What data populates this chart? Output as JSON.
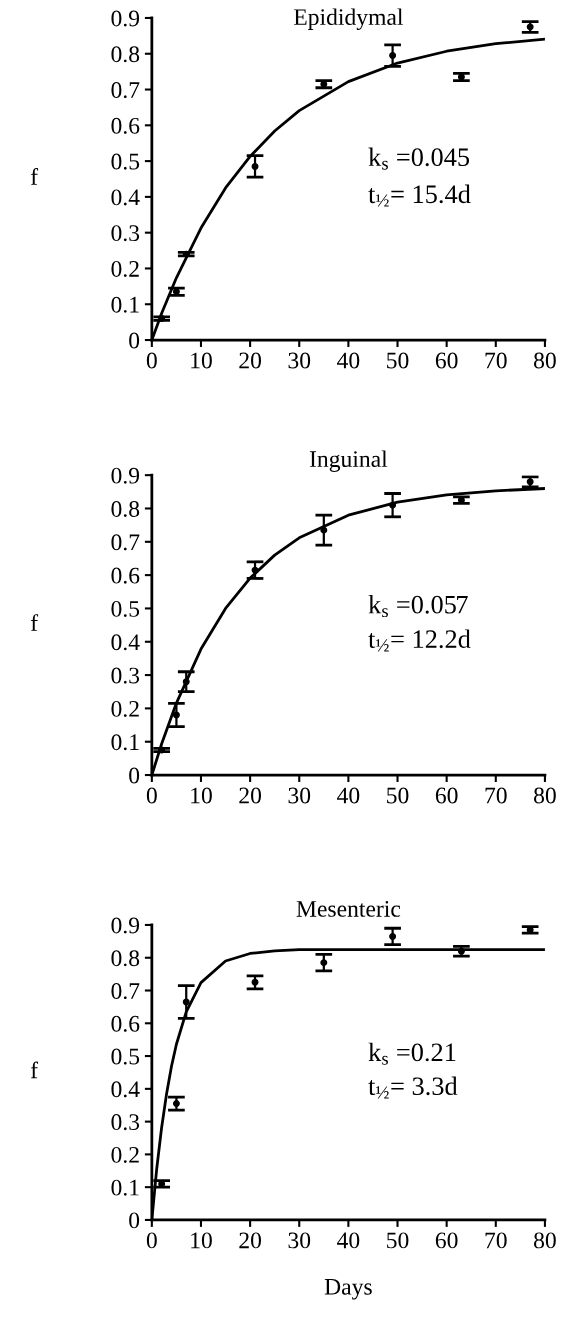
{
  "chart_data": [
    {
      "type": "scatter",
      "title": "Epididymal",
      "ylabel": "f",
      "xlim": [
        0,
        80
      ],
      "ylim": [
        0,
        0.9
      ],
      "xticks": [
        0,
        10,
        20,
        30,
        40,
        50,
        60,
        70,
        80
      ],
      "yticks": [
        0,
        0.1,
        0.2,
        0.3,
        0.4,
        0.5,
        0.6,
        0.7,
        0.8,
        0.9
      ],
      "marker": "circle",
      "annotations": [
        "k$_{s}$ =0.045",
        "t$_{½}$= 15.4d"
      ],
      "series": [
        {
          "color": "#000000",
          "x": [
            2,
            5,
            7,
            21,
            35,
            49,
            63,
            77
          ],
          "values": [
            0.06,
            0.135,
            0.24,
            0.485,
            0.715,
            0.795,
            0.735,
            0.875
          ],
          "errors": [
            0.005,
            0.01,
            0.005,
            0.03,
            0.01,
            0.03,
            0.01,
            0.015
          ]
        },
        {
          "type": "line",
          "color": "#000000",
          "x": [
            0,
            2,
            5,
            10,
            15,
            20,
            25,
            30,
            40,
            50,
            60,
            70,
            80
          ],
          "values": [
            0,
            0.075,
            0.174,
            0.313,
            0.425,
            0.513,
            0.584,
            0.641,
            0.722,
            0.774,
            0.807,
            0.828,
            0.841
          ],
          "marker": "none"
        }
      ]
    },
    {
      "type": "scatter",
      "title": "Inguinal",
      "ylabel": "f",
      "xlim": [
        0,
        80
      ],
      "ylim": [
        0,
        0.9
      ],
      "xticks": [
        0,
        10,
        20,
        30,
        40,
        50,
        60,
        70,
        80
      ],
      "yticks": [
        0,
        0.1,
        0.2,
        0.3,
        0.4,
        0.5,
        0.6,
        0.7,
        0.8,
        0.9
      ],
      "marker": "circle",
      "annotations": [
        "k$_{s}$ =0.057",
        "t$_{½}$= 12.2d"
      ],
      "series": [
        {
          "color": "#000000",
          "x": [
            2,
            5,
            7,
            21,
            35,
            49,
            63,
            77
          ],
          "values": [
            0.075,
            0.18,
            0.28,
            0.615,
            0.735,
            0.81,
            0.825,
            0.88
          ],
          "errors": [
            0.005,
            0.035,
            0.03,
            0.025,
            0.045,
            0.035,
            0.01,
            0.015
          ]
        },
        {
          "type": "line",
          "color": "#000000",
          "x": [
            0,
            2,
            5,
            10,
            15,
            20,
            25,
            30,
            40,
            50,
            60,
            70,
            80
          ],
          "values": [
            0,
            0.094,
            0.216,
            0.378,
            0.5,
            0.591,
            0.66,
            0.712,
            0.78,
            0.819,
            0.841,
            0.853,
            0.86
          ],
          "marker": "none"
        }
      ]
    },
    {
      "type": "scatter",
      "title": "Mesenteric",
      "ylabel": "f",
      "xlabel": "Days",
      "xlim": [
        0,
        80
      ],
      "ylim": [
        0,
        0.9
      ],
      "xticks": [
        0,
        10,
        20,
        30,
        40,
        50,
        60,
        70,
        80
      ],
      "yticks": [
        0,
        0.1,
        0.2,
        0.3,
        0.4,
        0.5,
        0.6,
        0.7,
        0.8,
        0.9
      ],
      "marker": "circle",
      "annotations": [
        "k$_{s}$ =0.21",
        "t$_{½}$= 3.3d"
      ],
      "series": [
        {
          "color": "#000000",
          "x": [
            2,
            5,
            7,
            21,
            35,
            49,
            63,
            77
          ],
          "values": [
            0.11,
            0.355,
            0.665,
            0.725,
            0.785,
            0.865,
            0.82,
            0.885
          ],
          "errors": [
            0.01,
            0.02,
            0.05,
            0.02,
            0.025,
            0.025,
            0.015,
            0.01
          ]
        },
        {
          "type": "line",
          "color": "#000000",
          "x": [
            0,
            1,
            2,
            3,
            4,
            5,
            7,
            10,
            15,
            20,
            25,
            30,
            40,
            50,
            60,
            70,
            80
          ],
          "values": [
            0,
            0.157,
            0.283,
            0.385,
            0.469,
            0.536,
            0.635,
            0.724,
            0.79,
            0.813,
            0.821,
            0.825,
            0.825,
            0.825,
            0.825,
            0.825,
            0.825
          ],
          "marker": "none"
        }
      ]
    }
  ]
}
